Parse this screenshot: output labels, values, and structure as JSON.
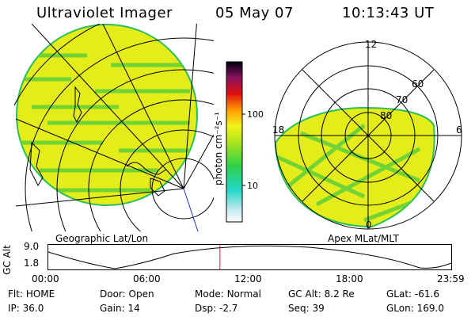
{
  "header": {
    "title": "Ultraviolet Imager",
    "date": "05 May 07",
    "time": "10:13:43 UT"
  },
  "colorbar": {
    "unit_label": "photon cm⁻²s⁻¹",
    "tick_100": "100",
    "tick_10": "10"
  },
  "geo_panel": {
    "label": "Geographic Lat/Lon"
  },
  "polar_panel": {
    "label": "Apex MLat/MLT",
    "mlt_top": "12",
    "mlt_left": "18",
    "mlt_right": "6",
    "mlt_bottom": "0",
    "lat_60": "60",
    "lat_70": "70",
    "lat_80": "80"
  },
  "orbit_plot": {
    "ylabel": "GC Alt",
    "y_top": "9.0",
    "y_bottom": "1.8",
    "x_ticks": [
      "00:00",
      "06:00",
      "12:00",
      "18:00",
      "23:59"
    ],
    "current_time_fraction": 0.426
  },
  "info": {
    "filter_label": "Flt:",
    "filter_value": "HOME",
    "door_label": "Door:",
    "door_value": "Open",
    "mode_label": "Mode:",
    "mode_value": "Normal",
    "gcalt_label": "GC Alt:",
    "gcalt_value": "8.2 Re",
    "glat_label": "GLat:",
    "glat_value": "-61.6",
    "ip_label": "IP:",
    "ip_value": "36.0",
    "gain_label": "Gain:",
    "gain_value": "14",
    "dsp_label": "Dsp:",
    "dsp_value": "-2.7",
    "seq_label": "Seq:",
    "seq_value": "39",
    "glon_label": "GLon:",
    "glon_value": "169.0"
  }
}
